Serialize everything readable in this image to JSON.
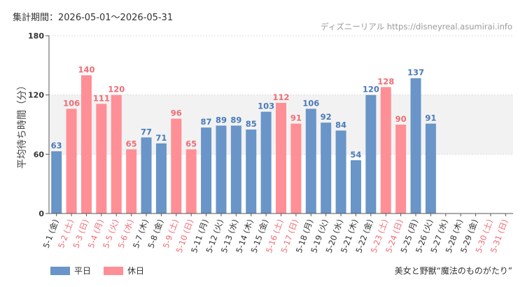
{
  "header": {
    "period_label": "集計期間：2026-05-01〜2026-05-31",
    "source": "ディズニーリアル https://disneyreal.asumirai.info"
  },
  "footer": {
    "attraction": "美女と野獣“魔法のものがたり”"
  },
  "colors": {
    "weekday": "#6995c8",
    "holiday": "#ff8f96",
    "weekday_label": "#4a7ab8",
    "holiday_label": "#ee6d75",
    "band": "#f2f2f2",
    "grid": "#dddddd"
  },
  "chart_data": {
    "type": "bar",
    "ylabel": "平均待ち時間（分）",
    "ylim": [
      0,
      180
    ],
    "yticks": [
      0,
      60,
      120,
      180
    ],
    "band": [
      60,
      120
    ],
    "legend": [
      {
        "name": "平日",
        "key": "weekday"
      },
      {
        "name": "休日",
        "key": "holiday"
      }
    ],
    "legend_position": "bottom-left",
    "categories": [
      "5-1 (金)",
      "5-2 (土)",
      "5-3 (日)",
      "5-4 (月)",
      "5-5 (火)",
      "5-6 (水)",
      "5-7 (木)",
      "5-8 (金)",
      "5-9 (土)",
      "5-10 (日)",
      "5-11 (月)",
      "5-12 (火)",
      "5-13 (水)",
      "5-14 (木)",
      "5-15 (金)",
      "5-16 (土)",
      "5-17 (日)",
      "5-18 (月)",
      "5-19 (火)",
      "5-20 (水)",
      "5-21 (木)",
      "5-22 (金)",
      "5-23 (土)",
      "5-24 (日)",
      "5-25 (月)",
      "5-26 (火)",
      "5-27 (水)",
      "5-28 (木)",
      "5-29 (金)",
      "5-30 (土)",
      "5-31 (日)"
    ],
    "values": [
      63,
      106,
      140,
      111,
      120,
      65,
      77,
      71,
      96,
      65,
      87,
      89,
      89,
      85,
      103,
      112,
      91,
      106,
      92,
      84,
      54,
      120,
      128,
      90,
      137,
      91,
      null,
      null,
      null,
      null,
      null
    ],
    "day_type": [
      "weekday",
      "holiday",
      "holiday",
      "holiday",
      "holiday",
      "holiday",
      "weekday",
      "weekday",
      "holiday",
      "holiday",
      "weekday",
      "weekday",
      "weekday",
      "weekday",
      "weekday",
      "holiday",
      "holiday",
      "weekday",
      "weekday",
      "weekday",
      "weekday",
      "weekday",
      "holiday",
      "holiday",
      "weekday",
      "weekday",
      "weekday",
      "weekday",
      "weekday",
      "holiday",
      "holiday"
    ]
  }
}
